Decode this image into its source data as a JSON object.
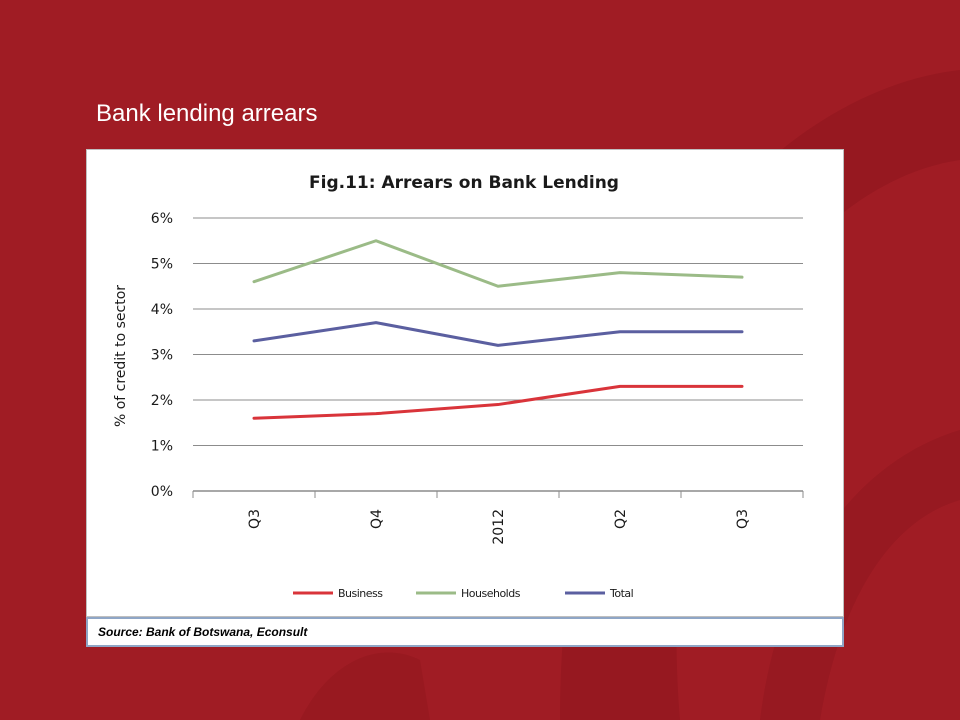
{
  "slide": {
    "title": "Bank lending arrears",
    "source": "Source: Bank of Botswana, Econsult",
    "background_color": "#a01c24"
  },
  "chart_data": {
    "type": "line",
    "title": "Fig.11: Arrears on Bank Lending",
    "ylabel": "% of credit to sector",
    "xlabel": "",
    "categories": [
      "Q3",
      "Q4",
      "2012",
      "Q2",
      "Q3"
    ],
    "ylim": [
      0,
      6
    ],
    "yticks": [
      "0%",
      "1%",
      "2%",
      "3%",
      "4%",
      "5%",
      "6%"
    ],
    "grid": true,
    "legend_position": "bottom",
    "series": [
      {
        "name": "Business",
        "color": "#d9343a",
        "values": [
          1.6,
          1.7,
          1.9,
          2.3,
          2.3
        ]
      },
      {
        "name": "Households",
        "color": "#9bbb87",
        "values": [
          4.6,
          5.5,
          4.5,
          4.8,
          4.7
        ]
      },
      {
        "name": "Total",
        "color": "#5b5fa0",
        "values": [
          3.3,
          3.7,
          3.2,
          3.5,
          3.5
        ]
      }
    ]
  }
}
